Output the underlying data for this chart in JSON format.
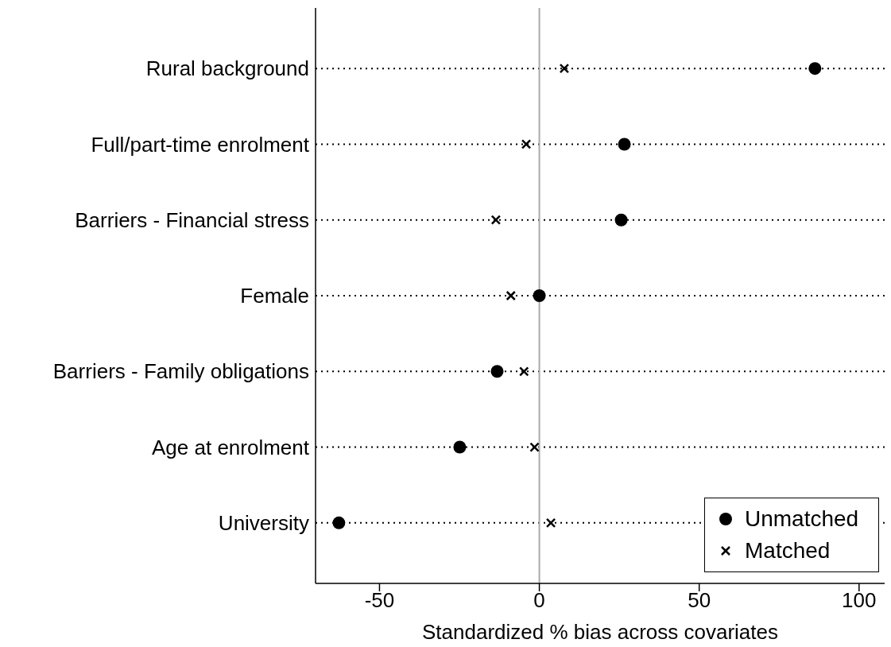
{
  "chart_data": {
    "type": "scatter",
    "xlabel": "Standardized % bias across covariates",
    "categories": [
      "Rural background",
      "Full/part-time enrolment",
      "Barriers - Financial stress",
      "Female",
      "Barriers - Family obligations",
      "Age at enrolment",
      "University"
    ],
    "series": [
      {
        "name": "Unmatched",
        "color": "#000000",
        "marker": "circle",
        "values": [
          86.2,
          26.6,
          25.6,
          0,
          -13.2,
          -24.9,
          -62.7
        ]
      },
      {
        "name": "Matched",
        "color": "#000000",
        "marker": "cross",
        "values": [
          7.8,
          -4.1,
          -13.6,
          -8.9,
          -4.8,
          -1.5,
          3.6
        ]
      }
    ],
    "xlim": [
      -70,
      108
    ],
    "xticks": [
      -50,
      0,
      50,
      100
    ],
    "ref_lines": [
      {
        "axis": "x",
        "value": 0,
        "color": "#aaaaaa"
      }
    ],
    "grid": "y",
    "line_style": "dotted",
    "legend": "bottom right",
    "orientation": "horizontal"
  }
}
